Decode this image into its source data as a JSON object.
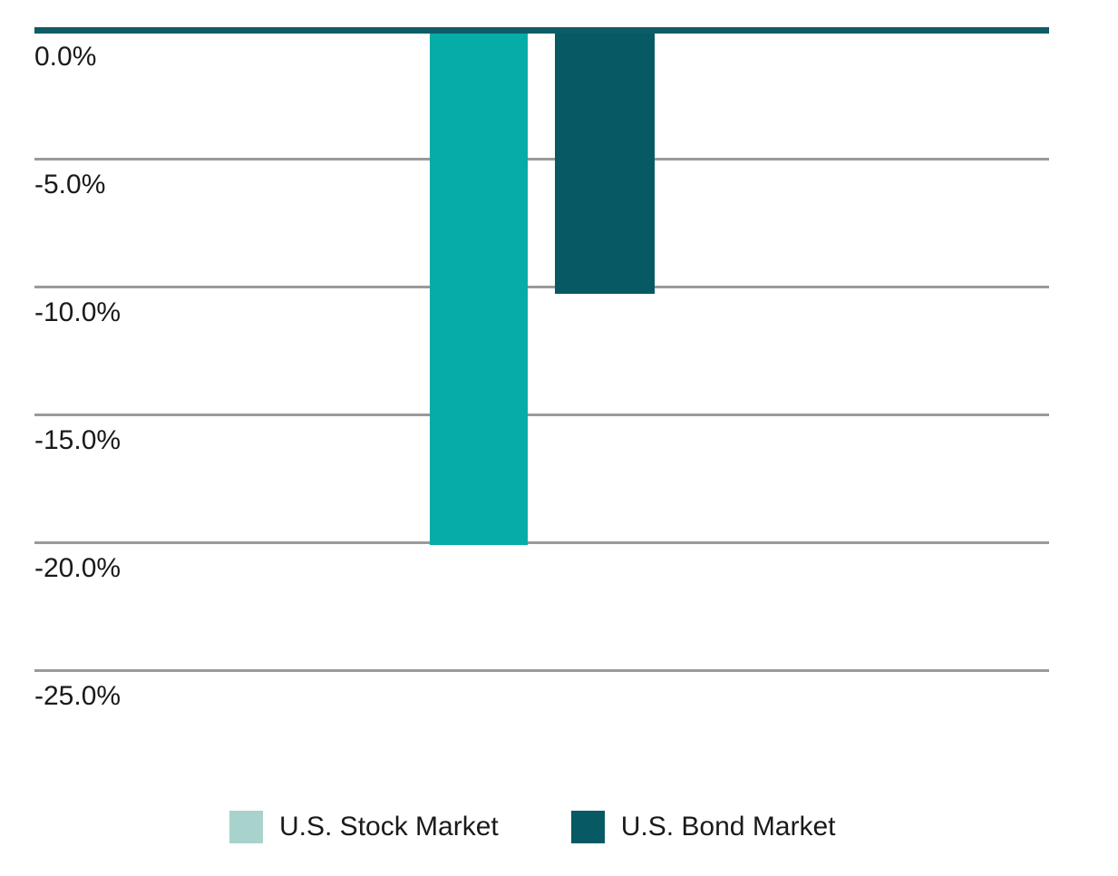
{
  "chart_data": {
    "type": "bar",
    "title": "",
    "xlabel": "",
    "ylabel": "",
    "categories": [
      "U.S. Stock Market",
      "U.S. Bond Market"
    ],
    "values": [
      -20.1,
      -10.3
    ],
    "ylim": [
      -25,
      0
    ],
    "yticks": [
      {
        "value": 0,
        "label": "0.0%"
      },
      {
        "value": -5,
        "label": "-5.0%"
      },
      {
        "value": -10,
        "label": "-10.0%"
      },
      {
        "value": -15,
        "label": "-15.0%"
      },
      {
        "value": -20,
        "label": "-20.0%"
      },
      {
        "value": -25,
        "label": "-25.0%"
      }
    ],
    "grid": true,
    "legend_position": "bottom",
    "bar_colors": [
      "#06aca7",
      "#075a63"
    ],
    "legend_swatch_colors": [
      "#a8d2cc",
      "#075a63"
    ],
    "axis_line_color": "#0e5c66",
    "gridline_color": "#9a9a9a",
    "text_color": "#1a1a1a",
    "background_color": "#ffffff"
  }
}
